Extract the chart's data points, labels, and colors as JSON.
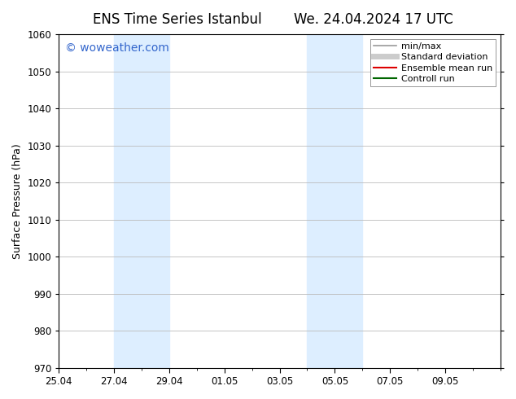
{
  "title_left": "ENS Time Series Istanbul",
  "title_right": "We. 24.04.2024 17 UTC",
  "ylabel": "Surface Pressure (hPa)",
  "ylim": [
    970,
    1060
  ],
  "yticks": [
    970,
    980,
    990,
    1000,
    1010,
    1020,
    1030,
    1040,
    1050,
    1060
  ],
  "xlim_start": 0,
  "xlim_end": 16,
  "xtick_positions_display": [
    0,
    2,
    4,
    6,
    8,
    10,
    12,
    14
  ],
  "xtick_labels": [
    "25.04",
    "27.04",
    "29.04",
    "01.05",
    "03.05",
    "05.05",
    "07.05",
    "09.05"
  ],
  "shaded_bands": [
    {
      "xmin": 2,
      "xmax": 4,
      "color": "#ddeeff"
    },
    {
      "xmin": 9,
      "xmax": 11,
      "color": "#ddeeff"
    }
  ],
  "watermark_text": "© woweather.com",
  "watermark_color": "#3366cc",
  "watermark_fontsize": 10,
  "legend_items": [
    {
      "label": "min/max",
      "color": "#999999",
      "lw": 1.2
    },
    {
      "label": "Standard deviation",
      "color": "#cccccc",
      "lw": 5
    },
    {
      "label": "Ensemble mean run",
      "color": "#dd0000",
      "lw": 1.5
    },
    {
      "label": "Controll run",
      "color": "#006600",
      "lw": 1.5
    }
  ],
  "bg_color": "#ffffff",
  "plot_bg_color": "#ffffff",
  "grid_color": "#bbbbbb",
  "title_fontsize": 12,
  "axis_label_fontsize": 9,
  "tick_fontsize": 8.5,
  "legend_fontsize": 8
}
